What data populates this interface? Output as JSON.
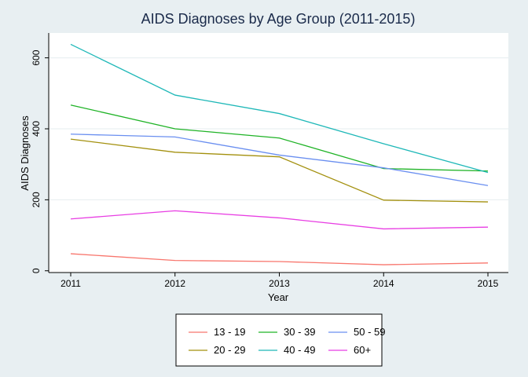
{
  "chart_data": {
    "type": "line",
    "title": "AIDS Diagnoses by Age Group (2011-2015)",
    "xlabel": "Year",
    "ylabel": "AIDS Diagnoses",
    "x": [
      2011,
      2012,
      2013,
      2014,
      2015
    ],
    "x_tick_labels": [
      "2011",
      "2012",
      "2013",
      "2014",
      "2015"
    ],
    "xlim": [
      2011,
      2015
    ],
    "ylim": [
      -5,
      670
    ],
    "y_ticks": [
      0,
      200,
      400,
      600
    ],
    "y_tick_labels": [
      "0",
      "200",
      "400",
      "600"
    ],
    "grid": "horizontal",
    "legend_position": "bottom",
    "series": [
      {
        "name": "13 - 19",
        "color": "#f8766d",
        "values": [
          48,
          29,
          26,
          17,
          22
        ]
      },
      {
        "name": "20 - 29",
        "color": "#a3900e",
        "values": [
          371,
          334,
          321,
          199,
          194
        ]
      },
      {
        "name": "30 - 39",
        "color": "#1fb326",
        "values": [
          467,
          400,
          374,
          288,
          281
        ]
      },
      {
        "name": "40 - 49",
        "color": "#1fb8b8",
        "values": [
          638,
          495,
          443,
          358,
          277
        ]
      },
      {
        "name": "50 - 59",
        "color": "#6a8ff0",
        "values": [
          385,
          377,
          326,
          290,
          240
        ]
      },
      {
        "name": "60+",
        "color": "#e83ee3",
        "values": [
          146,
          169,
          149,
          118,
          123
        ]
      }
    ]
  }
}
